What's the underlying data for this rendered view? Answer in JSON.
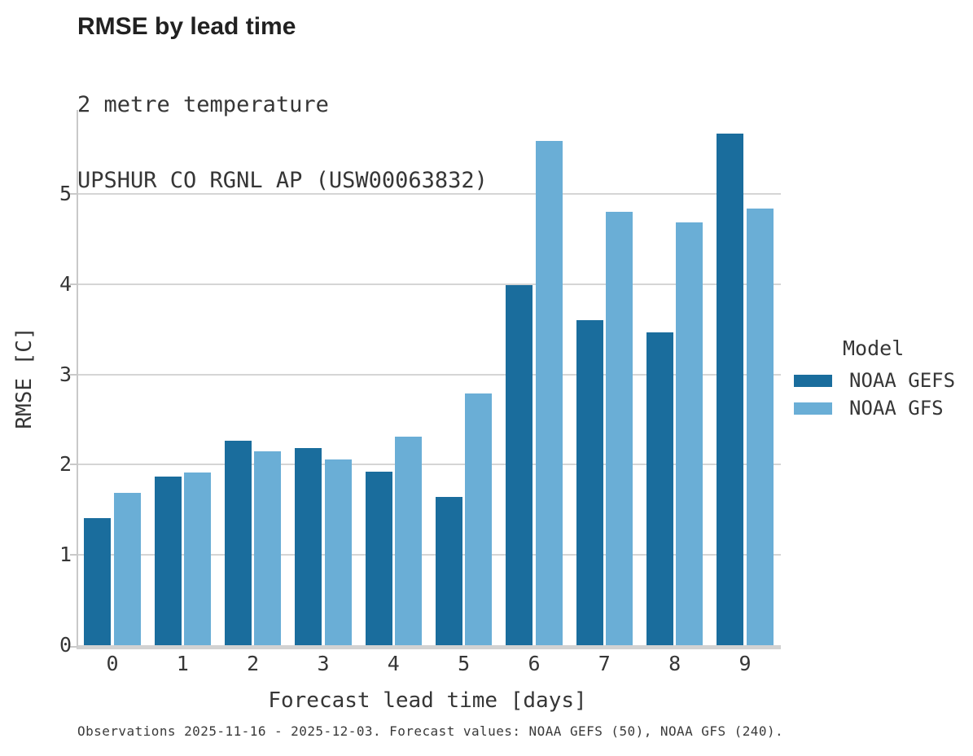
{
  "header": {
    "title": "RMSE by lead time",
    "subtitle_line1": "2 metre temperature",
    "subtitle_line2": "UPSHUR CO RGNL AP (USW00063832)"
  },
  "chart_data": {
    "type": "bar",
    "title": "RMSE by lead time",
    "subtitle": "2 metre temperature — UPSHUR CO RGNL AP (USW00063832)",
    "categories": [
      "0",
      "1",
      "2",
      "3",
      "4",
      "5",
      "6",
      "7",
      "8",
      "9"
    ],
    "series": [
      {
        "name": "NOAA GEFS",
        "color": "#1a6d9d",
        "values": [
          1.41,
          1.87,
          2.27,
          2.18,
          1.92,
          1.64,
          3.99,
          3.6,
          3.47,
          5.67
        ]
      },
      {
        "name": "NOAA GFS",
        "color": "#6aaed6",
        "values": [
          1.69,
          1.91,
          2.15,
          2.06,
          2.31,
          2.79,
          5.59,
          4.8,
          4.68,
          4.84
        ]
      }
    ],
    "xlabel": "Forecast lead time [days]",
    "ylabel": "RMSE [C]",
    "ylim": [
      0,
      5.93
    ],
    "yticks": [
      0,
      1,
      2,
      3,
      4,
      5
    ],
    "grid": "horizontal",
    "legend_title": "Model",
    "legend_position": "right"
  },
  "legend": {
    "title": "Model",
    "items": [
      {
        "label": "NOAA GEFS",
        "color": "#1a6d9d"
      },
      {
        "label": "NOAA GFS",
        "color": "#6aaed6"
      }
    ]
  },
  "caption": "Observations 2025-11-16 - 2025-12-03. Forecast values: NOAA GEFS (50), NOAA GFS (240)."
}
